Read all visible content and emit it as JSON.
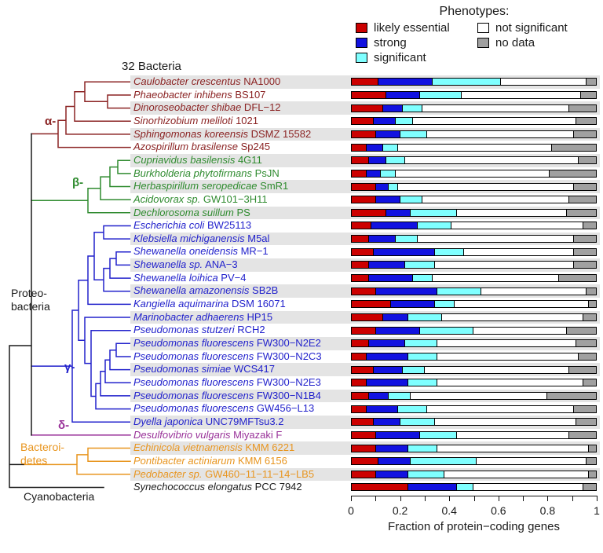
{
  "legend": {
    "title": "Phenotypes:"
  },
  "heading": "32 Bacteria",
  "groups": {
    "alpha": {
      "label": "α-",
      "color": "#8B2323"
    },
    "beta": {
      "label": "β-",
      "color": "#2F8B2F"
    },
    "gamma": {
      "label": "γ-",
      "color": "#2222CC"
    },
    "delta": {
      "label": "δ-",
      "color": "#993299"
    },
    "bacteroidetes": {
      "color": "#E8951F"
    },
    "cyano": {
      "color": "#1A1A1A"
    }
  },
  "side_labels": {
    "proteobacteria": {
      "lines": [
        "Proteo-",
        "bacteria"
      ],
      "color": "#1A1A1A"
    },
    "bacteroidetes": {
      "lines": [
        "Bacteroi-",
        "detes"
      ],
      "color": "#E8951F"
    },
    "cyanobacteria": {
      "lines": [
        "Cyanobacteria"
      ],
      "color": "#1A1A1A"
    }
  },
  "chart_data": {
    "type": "bar",
    "stacked": true,
    "orientation": "horizontal",
    "xlabel": "Fraction of protein−coding genes",
    "xlim": [
      0,
      1
    ],
    "xticks": [
      0,
      0.2,
      0.4,
      0.6,
      0.8,
      1
    ],
    "tick_labels": [
      "0",
      "0.2",
      "0.4",
      "0.6",
      "0.8",
      "1"
    ],
    "minor_tick_step": 0.1,
    "series_names": [
      "likely essential",
      "strong",
      "significant",
      "not significant",
      "no data"
    ],
    "series_colors": [
      "#CC0000",
      "#1212E0",
      "#7FFFFF",
      "#FFFFFF",
      "#A0A0A0"
    ],
    "band_color": "#E4E4E4",
    "rows": [
      {
        "species": "Caulobacter crescentus",
        "strain": "NA1000",
        "group": "alpha",
        "values": [
          0.11,
          0.22,
          0.28,
          0.35,
          0.04
        ]
      },
      {
        "species": "Phaeobacter inhibens",
        "strain": "BS107",
        "group": "alpha",
        "values": [
          0.14,
          0.14,
          0.17,
          0.49,
          0.06
        ]
      },
      {
        "species": "Dinoroseobacter shibae",
        "strain": "DFL−12",
        "group": "alpha",
        "values": [
          0.13,
          0.08,
          0.08,
          0.6,
          0.11
        ]
      },
      {
        "species": "Sinorhizobium meliloti",
        "strain": "1021",
        "group": "alpha",
        "values": [
          0.09,
          0.09,
          0.07,
          0.67,
          0.08
        ]
      },
      {
        "species": "Sphingomonas koreensis",
        "strain": "DSMZ 15582",
        "group": "alpha",
        "values": [
          0.1,
          0.1,
          0.11,
          0.6,
          0.09
        ]
      },
      {
        "species": "Azospirillum brasilense",
        "strain": "Sp245",
        "group": "alpha",
        "values": [
          0.06,
          0.07,
          0.06,
          0.63,
          0.18
        ]
      },
      {
        "species": "Cupriavidus basilensis",
        "strain": "4G11",
        "group": "beta",
        "values": [
          0.07,
          0.07,
          0.08,
          0.71,
          0.07
        ]
      },
      {
        "species": "Burkholderia phytofirmans",
        "strain": "PsJN",
        "group": "beta",
        "values": [
          0.06,
          0.06,
          0.06,
          0.63,
          0.19
        ]
      },
      {
        "species": "Herbaspirillum seropedicae",
        "strain": "SmR1",
        "group": "beta",
        "values": [
          0.1,
          0.05,
          0.04,
          0.72,
          0.09
        ]
      },
      {
        "species": "Acidovorax sp.",
        "strain": "GW101−3H11",
        "group": "beta",
        "values": [
          0.1,
          0.1,
          0.09,
          0.6,
          0.11
        ]
      },
      {
        "species": "Dechlorosoma suillum",
        "strain": "PS",
        "group": "beta",
        "values": [
          0.14,
          0.1,
          0.19,
          0.45,
          0.12
        ]
      },
      {
        "species": "Escherichia coli",
        "strain": "BW25113",
        "group": "gamma",
        "values": [
          0.08,
          0.19,
          0.14,
          0.54,
          0.05
        ]
      },
      {
        "species": "Klebsiella michiganensis",
        "strain": "M5al",
        "group": "gamma",
        "values": [
          0.07,
          0.11,
          0.09,
          0.64,
          0.09
        ]
      },
      {
        "species": "Shewanella oneidensis",
        "strain": "MR−1",
        "group": "gamma",
        "values": [
          0.09,
          0.25,
          0.12,
          0.45,
          0.09
        ]
      },
      {
        "species": "Shewanella sp.",
        "strain": "ANA−3",
        "group": "gamma",
        "values": [
          0.07,
          0.15,
          0.12,
          0.57,
          0.09
        ]
      },
      {
        "species": "Shewanella loihica",
        "strain": "PV−4",
        "group": "gamma",
        "values": [
          0.07,
          0.18,
          0.08,
          0.52,
          0.15
        ]
      },
      {
        "species": "Shewanella amazonensis",
        "strain": "SB2B",
        "group": "gamma",
        "values": [
          0.1,
          0.25,
          0.18,
          0.43,
          0.04
        ]
      },
      {
        "species": "Kangiella aquimarina",
        "strain": "DSM 16071",
        "group": "gamma",
        "values": [
          0.16,
          0.18,
          0.08,
          0.55,
          0.03
        ]
      },
      {
        "species": "Marinobacter adhaerens",
        "strain": "HP15",
        "group": "gamma",
        "values": [
          0.13,
          0.1,
          0.14,
          0.58,
          0.05
        ]
      },
      {
        "species": "Pseudomonas stutzeri",
        "strain": "RCH2",
        "group": "gamma",
        "values": [
          0.1,
          0.18,
          0.22,
          0.38,
          0.12
        ]
      },
      {
        "species": "Pseudomonas fluorescens",
        "strain": "FW300−N2E2",
        "group": "gamma",
        "values": [
          0.07,
          0.15,
          0.13,
          0.57,
          0.08
        ]
      },
      {
        "species": "Pseudomonas fluorescens",
        "strain": "FW300−N2C3",
        "group": "gamma",
        "values": [
          0.06,
          0.17,
          0.12,
          0.58,
          0.07
        ]
      },
      {
        "species": "Pseudomonas simiae",
        "strain": "WCS417",
        "group": "gamma",
        "values": [
          0.09,
          0.12,
          0.09,
          0.59,
          0.11
        ]
      },
      {
        "species": "Pseudomonas fluorescens",
        "strain": "FW300−N2E3",
        "group": "gamma",
        "values": [
          0.06,
          0.17,
          0.12,
          0.6,
          0.05
        ]
      },
      {
        "species": "Pseudomonas fluorescens",
        "strain": "FW300−N1B4",
        "group": "gamma",
        "values": [
          0.07,
          0.08,
          0.09,
          0.56,
          0.2
        ]
      },
      {
        "species": "Pseudomonas fluorescens",
        "strain": "GW456−L13",
        "group": "gamma",
        "values": [
          0.06,
          0.13,
          0.12,
          0.6,
          0.09
        ]
      },
      {
        "species": "Dyella japonica",
        "strain": "UNC79MFTsu3.2",
        "group": "gamma",
        "values": [
          0.09,
          0.11,
          0.14,
          0.58,
          0.08
        ]
      },
      {
        "species": "Desulfovibrio vulgaris",
        "strain": "Miyazaki F",
        "group": "delta",
        "values": [
          0.1,
          0.18,
          0.15,
          0.46,
          0.11
        ]
      },
      {
        "species": "Echinicola vietnamensis",
        "strain": "KMM 6221",
        "group": "bacteroidetes",
        "values": [
          0.1,
          0.13,
          0.12,
          0.62,
          0.03
        ]
      },
      {
        "species": "Pontibacter actiniarum",
        "strain": "KMM 6156",
        "group": "bacteroidetes",
        "values": [
          0.11,
          0.13,
          0.27,
          0.45,
          0.04
        ]
      },
      {
        "species": "Pedobacter sp.",
        "strain": "GW460−11−11−14−LB5",
        "group": "bacteroidetes",
        "values": [
          0.1,
          0.13,
          0.15,
          0.59,
          0.03
        ]
      },
      {
        "species": "Synechococcus elongatus",
        "strain": "PCC 7942",
        "group": "cyano",
        "values": [
          0.23,
          0.2,
          0.07,
          0.45,
          0.05
        ]
      }
    ]
  }
}
